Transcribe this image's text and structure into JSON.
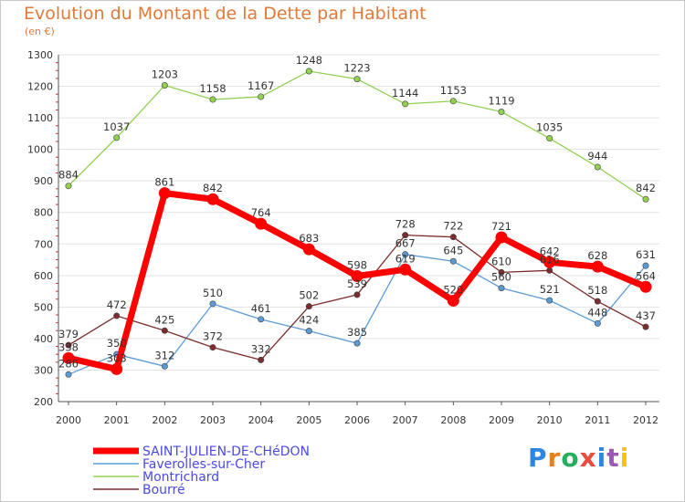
{
  "title": "Evolution du Montant de la Dette par Habitant",
  "unit_label": "(en €)",
  "chart_data": {
    "type": "line",
    "title": "Evolution du Montant de la Dette par Habitant",
    "subtitle": "(en €)",
    "xlabel": "",
    "ylabel": "",
    "ylim": [
      200,
      1300
    ],
    "yticks": [
      "200",
      "300",
      "400",
      "500",
      "600",
      "700",
      "800",
      "900",
      "1000",
      "1100",
      "1200",
      "1300"
    ],
    "categories": [
      "2000",
      "2001",
      "2002",
      "2003",
      "2004",
      "2005",
      "2006",
      "2007",
      "2008",
      "2009",
      "2010",
      "2011",
      "2012"
    ],
    "grid": "horizontal",
    "legend_position": "bottom-left",
    "series": [
      {
        "name": "SAINT-JULIEN-DE-CHéDON",
        "color": "#ff0000",
        "values": [
          338,
          303,
          861,
          842,
          764,
          683,
          598,
          619,
          520,
          721,
          642,
          628,
          564
        ],
        "labels": [
          "338",
          "303",
          "861",
          "842",
          "764",
          "683",
          "598",
          "619",
          "520",
          "721",
          "642",
          "628",
          "564"
        ]
      },
      {
        "name": "Faverolles-sur-Cher",
        "color": "#5b9bd5",
        "values": [
          286,
          350,
          312,
          510,
          461,
          424,
          385,
          667,
          645,
          560,
          521,
          448,
          631
        ],
        "labels": [
          "286",
          "350",
          "312",
          "510",
          "461",
          "424",
          "385",
          "667",
          "645",
          "560",
          "521",
          "448",
          "631"
        ]
      },
      {
        "name": "Montrichard",
        "color": "#92d050",
        "values": [
          884,
          1037,
          1203,
          1158,
          1167,
          1248,
          1223,
          1144,
          1153,
          1119,
          1035,
          944,
          842
        ],
        "labels": [
          "884",
          "1037",
          "1203",
          "1158",
          "1167",
          "1248",
          "1223",
          "1144",
          "1153",
          "1119",
          "1035",
          "944",
          "842"
        ]
      },
      {
        "name": "Bourré",
        "color": "#7b2c2c",
        "values": [
          379,
          472,
          425,
          372,
          332,
          502,
          539,
          728,
          722,
          610,
          616,
          518,
          437
        ],
        "labels": [
          "379",
          "472",
          "425",
          "372",
          "332",
          "502",
          "539",
          "728",
          "722",
          "610",
          "616",
          "518",
          "437"
        ]
      }
    ]
  },
  "logo": {
    "letters": [
      "P",
      "r",
      "o",
      "x",
      "i",
      "t",
      "i"
    ],
    "colors": [
      "#2e86de",
      "#e67e22",
      "#27ae60",
      "#e74c3c",
      "#2e86de",
      "#9b59b6",
      "#f1c40f"
    ]
  }
}
